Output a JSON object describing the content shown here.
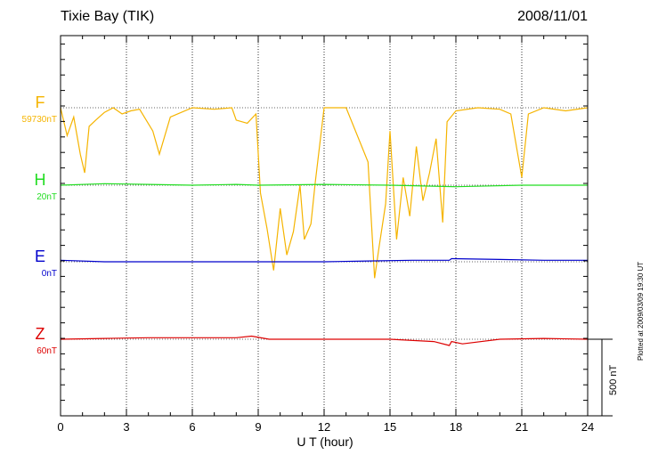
{
  "header": {
    "station": "Tixie Bay (TIK)",
    "date": "2008/11/01"
  },
  "footer": {
    "plotted_at": "Plotted at 2009/03/09 19:30 UT",
    "scale_label": "500 nT"
  },
  "channels": [
    {
      "name": "F",
      "base": "59730nT",
      "color": "#f5b400"
    },
    {
      "name": "H",
      "base": "20nT",
      "color": "#22dd22"
    },
    {
      "name": "E",
      "base": "0nT",
      "color": "#0000cc"
    },
    {
      "name": "Z",
      "base": "60nT",
      "color": "#dd0000"
    }
  ],
  "chart_data": {
    "type": "line",
    "title": "Tixie Bay (TIK)",
    "date": "2008/11/01",
    "xlabel": "U T (hour)",
    "ylabel": "",
    "xlim": [
      0,
      24
    ],
    "x_ticks": [
      "0",
      "3",
      "6",
      "9",
      "12",
      "15",
      "18",
      "21",
      "24"
    ],
    "scale_bar_nT": 500,
    "vertical_grid": "dotted every 3 hours",
    "series": [
      {
        "name": "F",
        "baseline_label": "59730nT",
        "color": "#f5b400",
        "x": [
          0,
          0.3,
          0.6,
          0.9,
          1.1,
          1.3,
          1.6,
          2,
          2.4,
          2.8,
          3.2,
          3.6,
          4.2,
          4.5,
          5,
          6,
          7,
          7.8,
          8,
          8.5,
          8.9,
          9.1,
          9.4,
          9.7,
          10,
          10.3,
          10.6,
          10.9,
          11.1,
          11.4,
          11.6,
          12,
          13,
          14,
          14.3,
          14.5,
          14.8,
          15,
          15.3,
          15.6,
          15.9,
          16.2,
          16.5,
          16.8,
          17.1,
          17.4,
          17.6,
          18,
          19,
          20,
          20.5,
          21,
          21.3,
          22,
          23,
          24
        ],
        "y": [
          0,
          -180,
          -60,
          -300,
          -420,
          -120,
          -80,
          -30,
          0,
          -40,
          -20,
          -10,
          -150,
          -300,
          -60,
          0,
          -10,
          0,
          -80,
          -100,
          -40,
          -550,
          -780,
          -1050,
          -650,
          -950,
          -800,
          -500,
          -850,
          -750,
          -480,
          0,
          0,
          -350,
          -1100,
          -900,
          -620,
          -150,
          -850,
          -450,
          -700,
          -250,
          -600,
          -420,
          -200,
          -740,
          -90,
          -20,
          0,
          -10,
          -40,
          -450,
          -40,
          0,
          -20,
          0
        ]
      },
      {
        "name": "H",
        "baseline_label": "20nT",
        "color": "#22dd22",
        "x": [
          0,
          2,
          4,
          6,
          8,
          9,
          12,
          15,
          18,
          21,
          24
        ],
        "y": [
          0,
          10,
          5,
          0,
          5,
          0,
          5,
          0,
          -10,
          0,
          0
        ]
      },
      {
        "name": "E",
        "baseline_label": "0nT",
        "color": "#0000cc",
        "x": [
          0,
          2,
          4,
          6,
          8,
          10,
          12,
          14,
          16,
          17.7,
          17.8,
          20,
          22,
          24
        ],
        "y": [
          10,
          0,
          0,
          0,
          0,
          0,
          0,
          5,
          10,
          10,
          20,
          15,
          10,
          10
        ]
      },
      {
        "name": "Z",
        "baseline_label": "60nT",
        "color": "#dd0000",
        "x": [
          0,
          2,
          4,
          6,
          8,
          8.7,
          9.5,
          12,
          15,
          17,
          17.7,
          17.8,
          18.3,
          20,
          22,
          24
        ],
        "y": [
          0,
          5,
          10,
          10,
          10,
          20,
          0,
          0,
          0,
          -15,
          -40,
          -15,
          -30,
          0,
          5,
          0
        ]
      }
    ]
  }
}
